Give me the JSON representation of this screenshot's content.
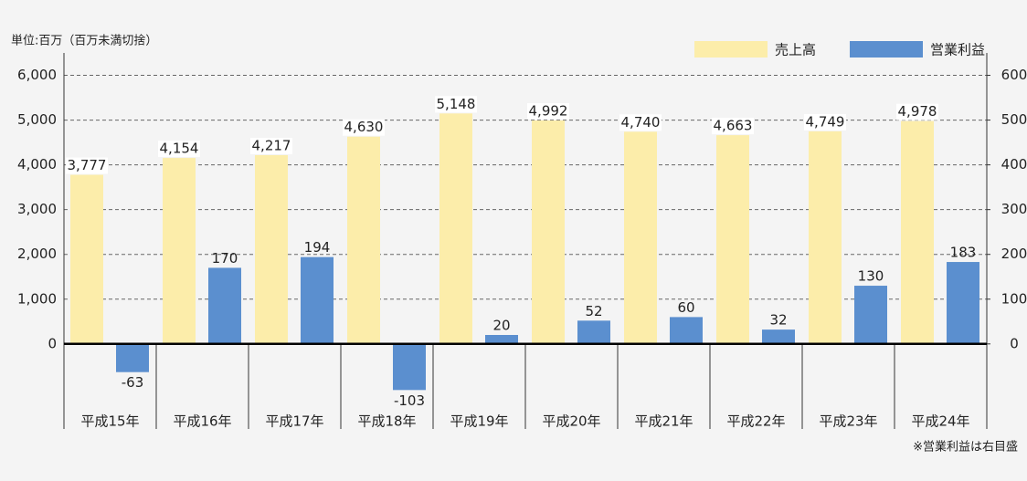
{
  "chart_data": {
    "type": "bar",
    "unit_label": "単位:百万（百万未満切捨）",
    "note": "※営業利益は右目盛",
    "categories": [
      "平成15年",
      "平成16年",
      "平成17年",
      "平成18年",
      "平成19年",
      "平成20年",
      "平成21年",
      "平成22年",
      "平成23年",
      "平成24年"
    ],
    "series": [
      {
        "name": "売上高",
        "color": "#fcedaa",
        "values": [
          3777,
          4154,
          4217,
          4630,
          5148,
          4992,
          4740,
          4663,
          4749,
          4978
        ],
        "value_labels": [
          "3,777",
          "4,154",
          "4,217",
          "4,630",
          "5,148",
          "4,992",
          "4,740",
          "4,663",
          "4,749",
          "4,978"
        ]
      },
      {
        "name": "営業利益",
        "color": "#5b8fcf",
        "axis": "y2",
        "values": [
          -63,
          170,
          194,
          -103,
          20,
          52,
          60,
          32,
          130,
          183
        ]
      }
    ],
    "ylim": [
      -1900,
      6500
    ],
    "yticks": [
      0,
      {
        "value": 1000,
        "label": "1,000"
      },
      {
        "value": 2000,
        "label": "2,000"
      },
      {
        "value": 3000,
        "label": "3,000"
      },
      {
        "value": 4000,
        "label": "4,000"
      },
      {
        "value": 5000,
        "label": "5,000"
      },
      {
        "value": 6000,
        "label": "6,000"
      }
    ],
    "y2lim": [
      -190,
      650
    ],
    "y2ticks": [
      0,
      100,
      200,
      300,
      400,
      500,
      600
    ],
    "grid": true,
    "legend": "top-right"
  }
}
